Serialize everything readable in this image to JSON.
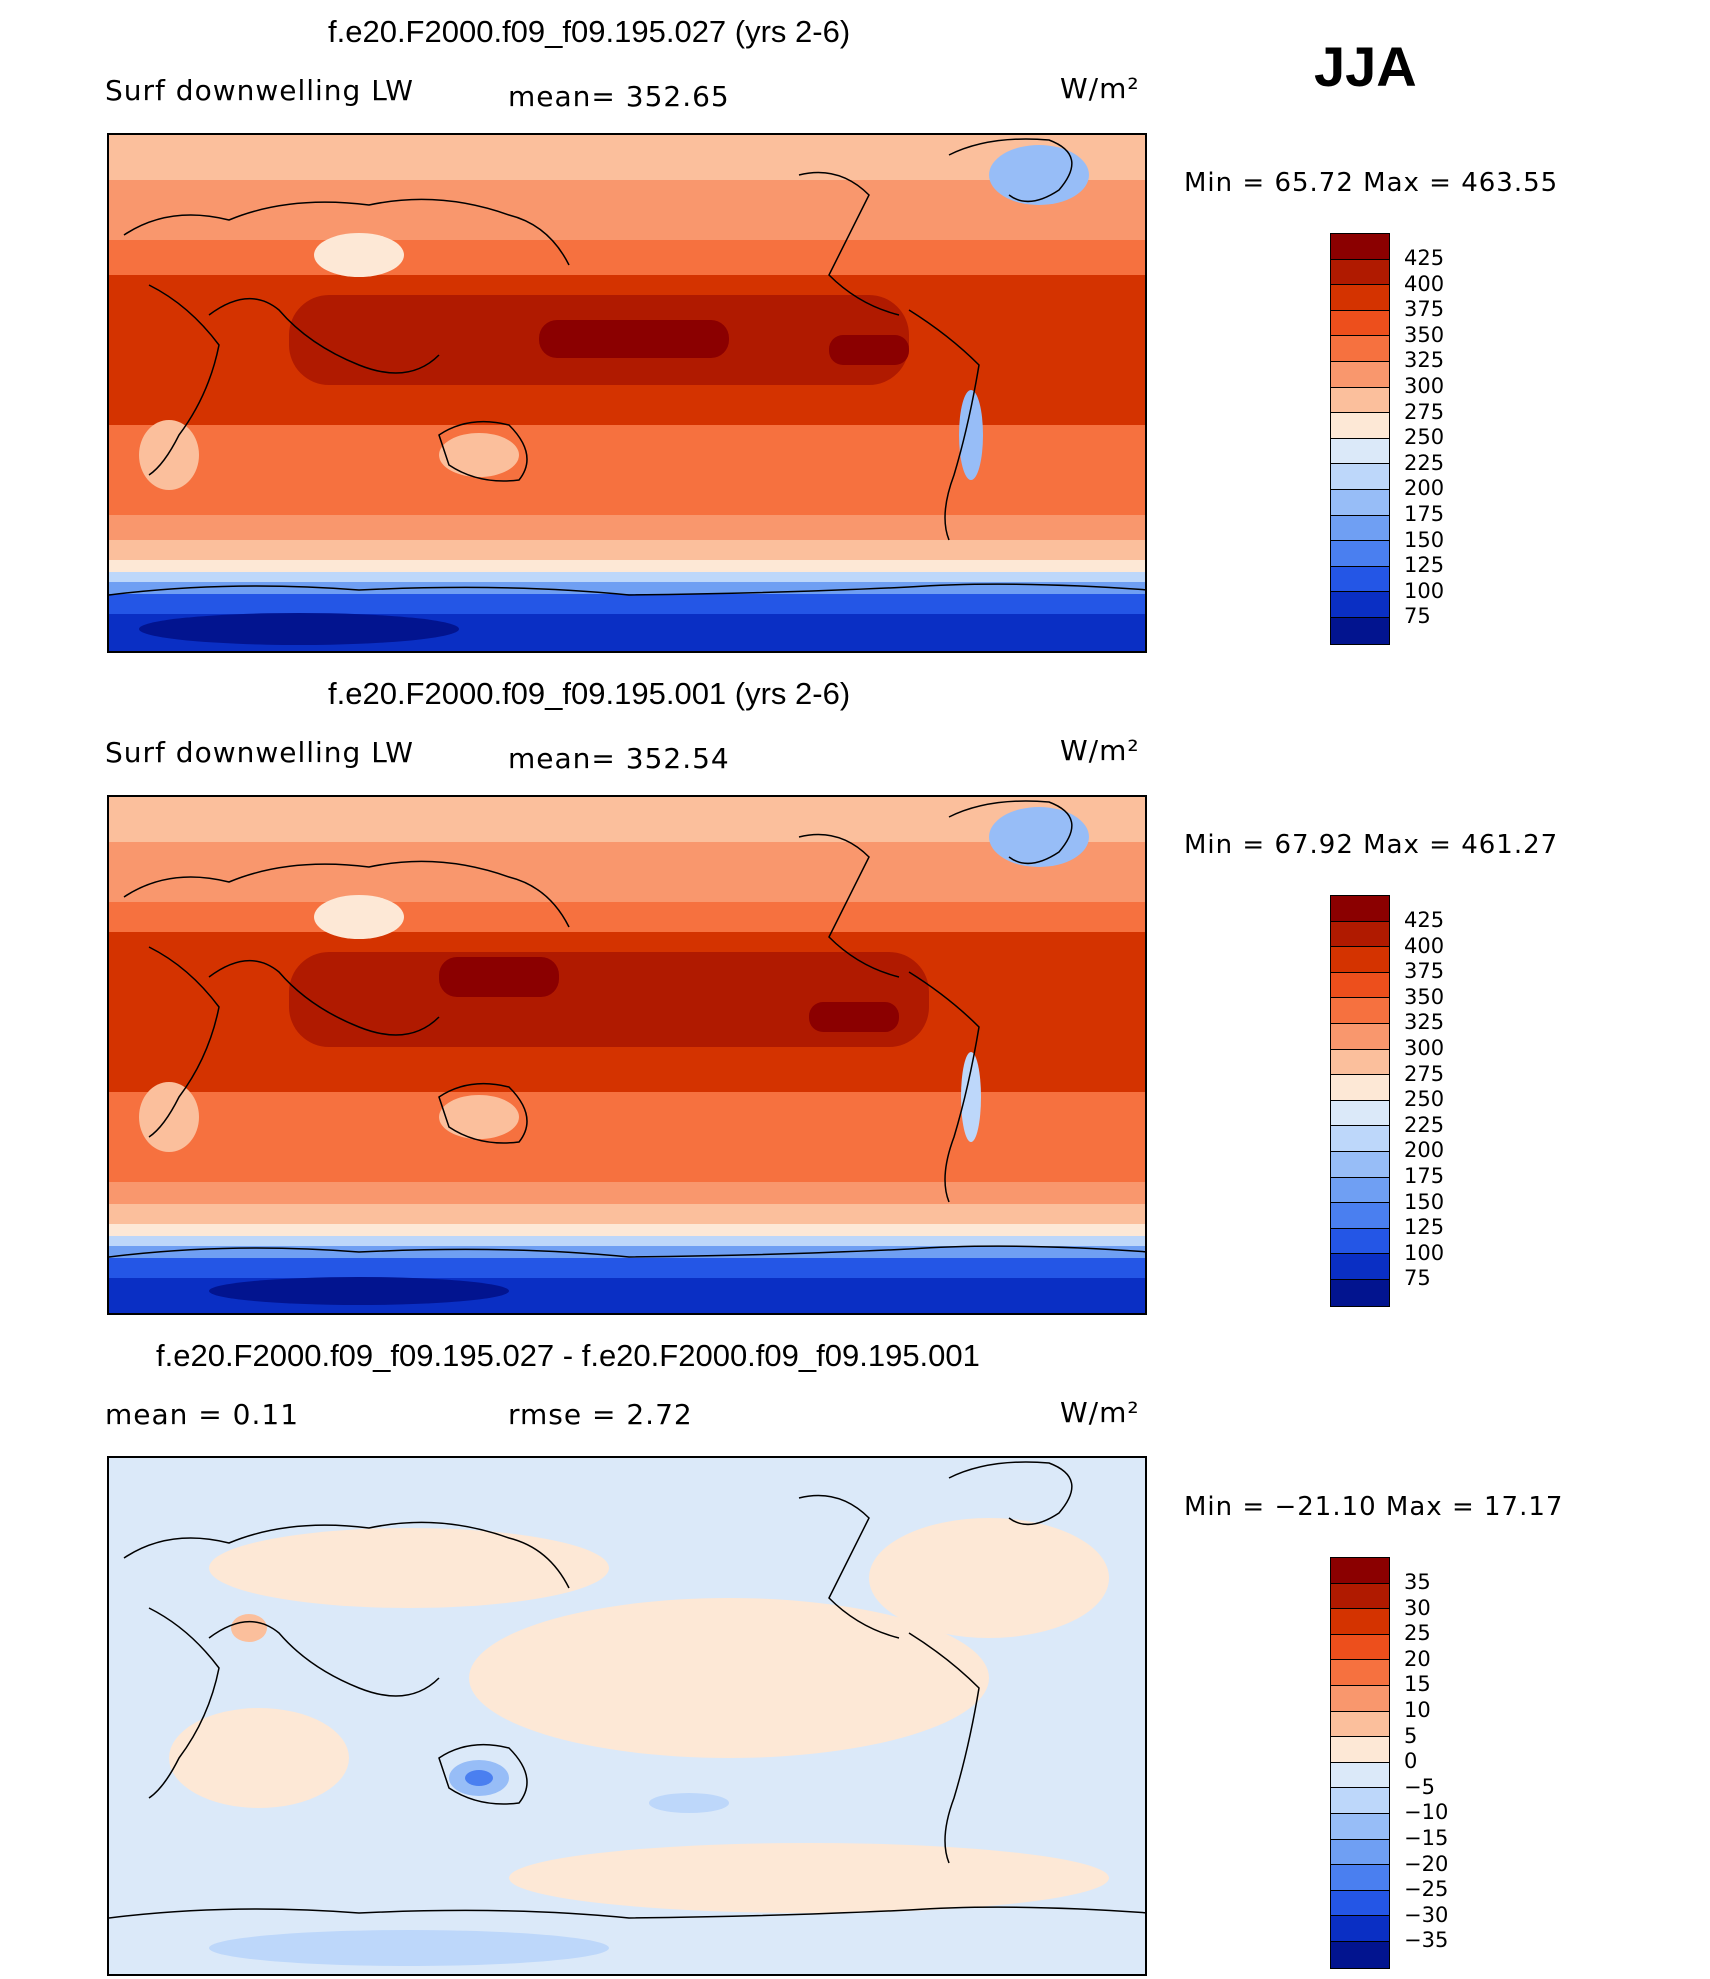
{
  "season": "JJA",
  "panels": [
    {
      "title": "f.e20.F2000.f09_f09.195.027 (yrs 2-6)",
      "left_label": "Surf downwelling LW",
      "center_label": "mean= 352.65",
      "units": "W/m²",
      "minmax": "Min =   65.72 Max =  463.55",
      "levels": [
        "425",
        "400",
        "375",
        "350",
        "325",
        "300",
        "275",
        "250",
        "225",
        "200",
        "175",
        "150",
        "125",
        "100",
        "75"
      ]
    },
    {
      "title": "f.e20.F2000.f09_f09.195.001 (yrs 2-6)",
      "left_label": "Surf downwelling LW",
      "center_label": "mean= 352.54",
      "units": "W/m²",
      "minmax": "Min =   67.92 Max =  461.27",
      "levels": [
        "425",
        "400",
        "375",
        "350",
        "325",
        "300",
        "275",
        "250",
        "225",
        "200",
        "175",
        "150",
        "125",
        "100",
        "75"
      ]
    },
    {
      "title": "f.e20.F2000.f09_f09.195.027 - f.e20.F2000.f09_f09.195.001",
      "left_label": "mean =    0.11",
      "center_label": "rmse =    2.72",
      "units": "W/m²",
      "minmax": "Min = −21.10 Max =   17.17",
      "levels": [
        "35",
        "30",
        "25",
        "20",
        "15",
        "10",
        "5",
        "0",
        "−5",
        "−10",
        "−15",
        "−20",
        "−25",
        "−30",
        "−35"
      ]
    }
  ],
  "colors": {
    "abs_scale": [
      "#8b0000",
      "#b01a00",
      "#d43300",
      "#ed4f1c",
      "#f6713f",
      "#f9976d",
      "#fbbf9c",
      "#fde8d6",
      "#dbe9f9",
      "#bdd7fa",
      "#97bdf7",
      "#6f9ff3",
      "#4a7ff0",
      "#2456e6",
      "#0a2fc4",
      "#02148f"
    ],
    "diff_scale": [
      "#8b0000",
      "#b01a00",
      "#d43300",
      "#ed4f1c",
      "#f6713f",
      "#f9976d",
      "#fbbf9c",
      "#fde8d6",
      "#dbe9f9",
      "#bdd7fa",
      "#97bdf7",
      "#6f9ff3",
      "#4a7ff0",
      "#2456e6",
      "#0a2fc4",
      "#02148f"
    ]
  },
  "chart_data": [
    {
      "type": "heatmap",
      "title": "f.e20.F2000.f09_f09.195.027 (yrs 2-6)",
      "variable": "Surf downwelling LW",
      "units": "W/m²",
      "mean": 352.65,
      "min": 65.72,
      "max": 463.55,
      "contour_levels": [
        75,
        100,
        125,
        150,
        175,
        200,
        225,
        250,
        275,
        300,
        325,
        350,
        375,
        400,
        425
      ]
    },
    {
      "type": "heatmap",
      "title": "f.e20.F2000.f09_f09.195.001 (yrs 2-6)",
      "variable": "Surf downwelling LW",
      "units": "W/m²",
      "mean": 352.54,
      "min": 67.92,
      "max": 461.27,
      "contour_levels": [
        75,
        100,
        125,
        150,
        175,
        200,
        225,
        250,
        275,
        300,
        325,
        350,
        375,
        400,
        425
      ]
    },
    {
      "type": "heatmap",
      "title": "f.e20.F2000.f09_f09.195.027 - f.e20.F2000.f09_f09.195.001",
      "units": "W/m²",
      "mean": 0.11,
      "rmse": 2.72,
      "min": -21.1,
      "max": 17.17,
      "contour_levels": [
        -35,
        -30,
        -25,
        -20,
        -15,
        -10,
        -5,
        0,
        5,
        10,
        15,
        20,
        25,
        30,
        35
      ]
    }
  ]
}
